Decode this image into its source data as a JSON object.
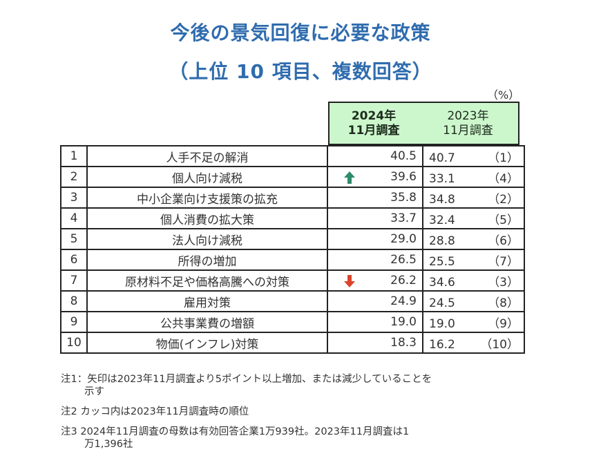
{
  "title": {
    "line1": "今後の景気回復に必要な政策",
    "line2": "（上位 10 項目、複数回答）"
  },
  "unit": "（%）",
  "headers": {
    "col2024": [
      "2024年",
      "11月調査"
    ],
    "col2023": [
      "2023年",
      "11月調査"
    ]
  },
  "rows": [
    {
      "rank": "1",
      "item": "人手不足の解消",
      "v2024": "40.5",
      "v2023": "40.7",
      "rank2023": "（1）",
      "arrow": ""
    },
    {
      "rank": "2",
      "item": "個人向け減税",
      "v2024": "39.6",
      "v2023": "33.1",
      "rank2023": "（4）",
      "arrow": "up"
    },
    {
      "rank": "3",
      "item": "中小企業向け支援策の拡充",
      "v2024": "35.8",
      "v2023": "34.8",
      "rank2023": "（2）",
      "arrow": ""
    },
    {
      "rank": "4",
      "item": "個人消費の拡大策",
      "v2024": "33.7",
      "v2023": "32.4",
      "rank2023": "（5）",
      "arrow": ""
    },
    {
      "rank": "5",
      "item": "法人向け減税",
      "v2024": "29.0",
      "v2023": "28.8",
      "rank2023": "（6）",
      "arrow": ""
    },
    {
      "rank": "6",
      "item": "所得の増加",
      "v2024": "26.5",
      "v2023": "25.5",
      "rank2023": "（7）",
      "arrow": ""
    },
    {
      "rank": "7",
      "item": "原材料不足や価格高騰への対策",
      "v2024": "26.2",
      "v2023": "34.6",
      "rank2023": "（3）",
      "arrow": "down"
    },
    {
      "rank": "8",
      "item": "雇用対策",
      "v2024": "24.9",
      "v2023": "24.5",
      "rank2023": "（8）",
      "arrow": ""
    },
    {
      "rank": "9",
      "item": "公共事業費の増額",
      "v2024": "19.0",
      "v2023": "19.0",
      "rank2023": "（9）",
      "arrow": ""
    },
    {
      "rank": "10",
      "item": "物価(インフレ)対策",
      "v2024": "18.3",
      "v2023": "16.2",
      "rank2023": "（10）",
      "arrow": ""
    }
  ],
  "colors": {
    "title": "#2f6cae",
    "header_bg": "#ccf7cc",
    "arrow_up": "#2e8b6a",
    "arrow_down": "#d9442b"
  },
  "notes": {
    "n1_label": "注1：",
    "n1_line1": "矢印は2023年11月調査より5ポイント以上増加、または減少していることを",
    "n1_line2": "示す",
    "n2_label": "注2",
    "n2_text": "カッコ内は2023年11月調査時の順位",
    "n3_label": "注3",
    "n3_line1": "2024年11月調査の母数は有効回答企業1万939社。2023年11月調査は1",
    "n3_line2": "万1,396社"
  }
}
